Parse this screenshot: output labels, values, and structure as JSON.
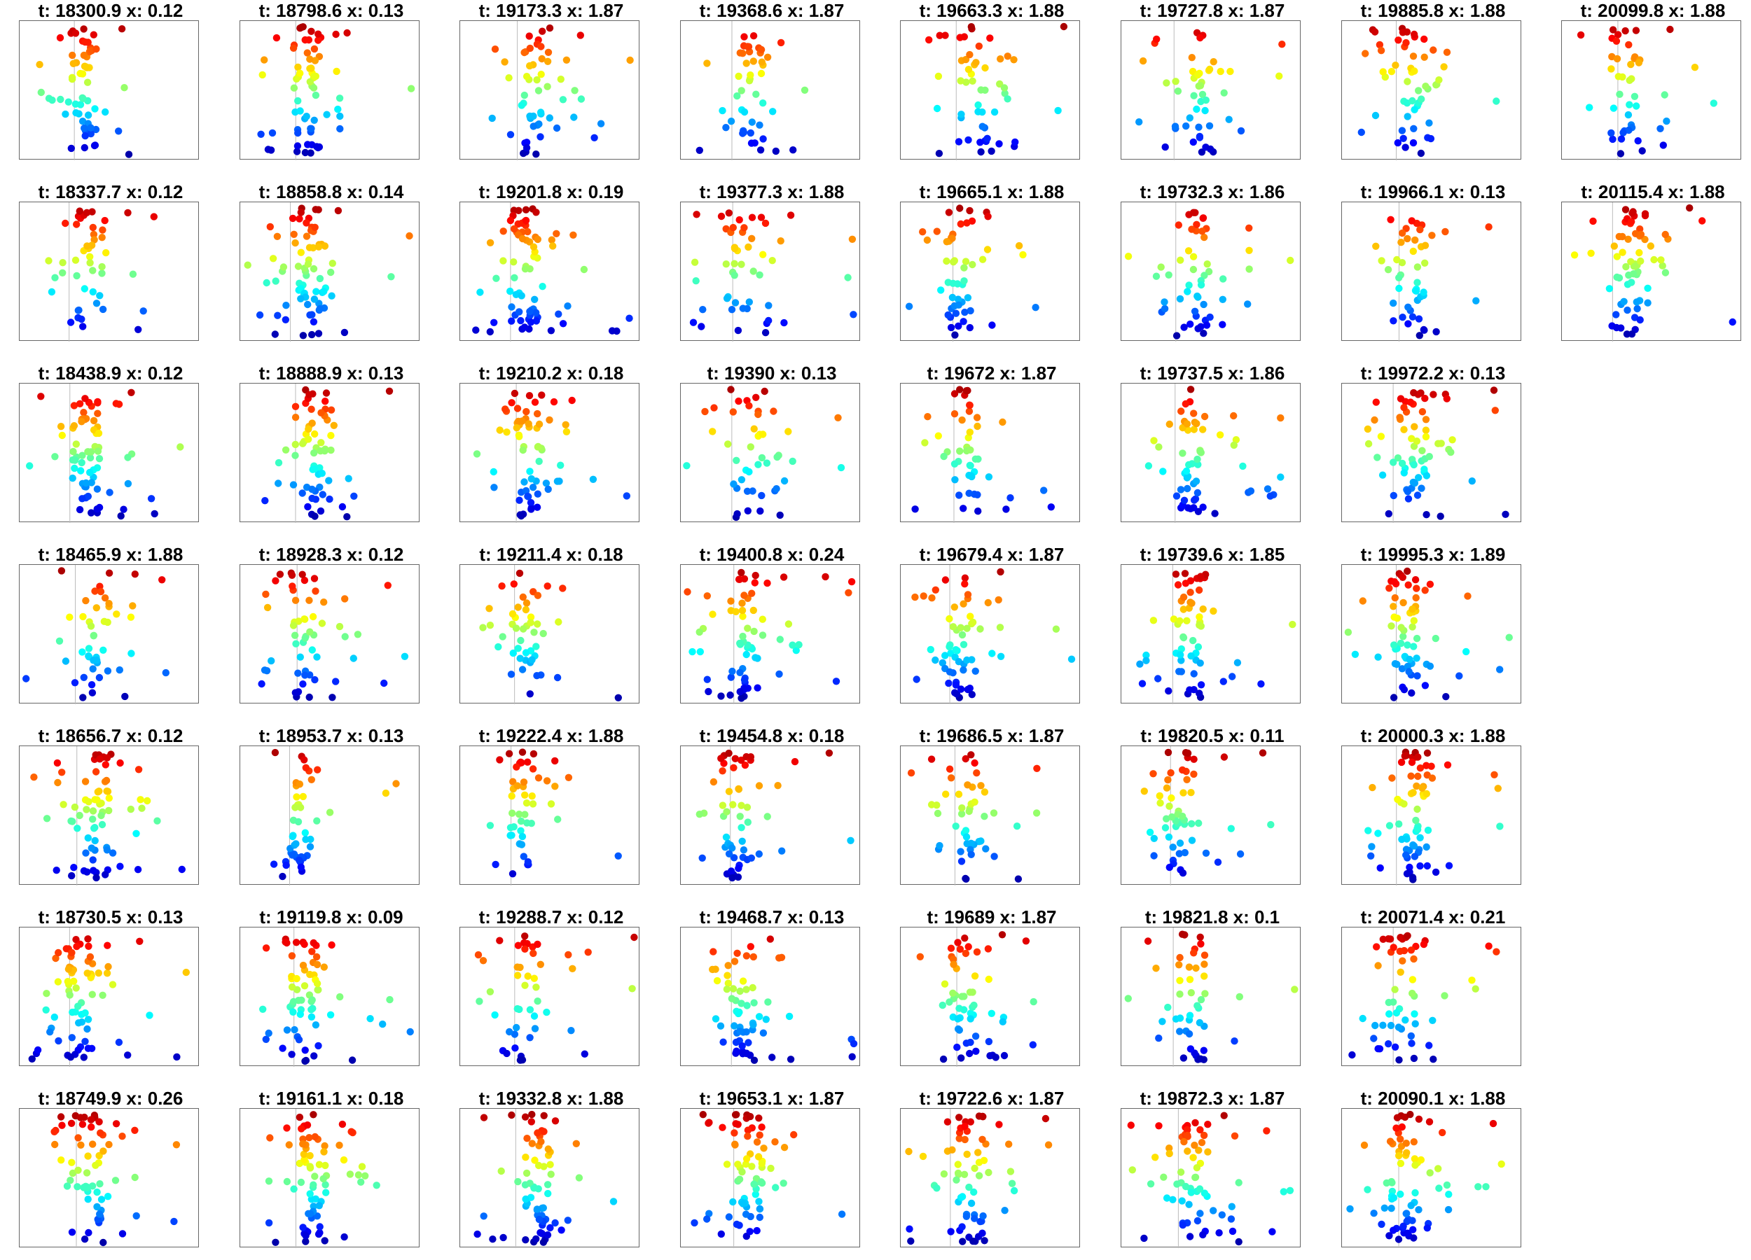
{
  "chart_data": {
    "type": "scatter",
    "layout": "7 rows x 8 columns, filled column by column",
    "colormap": "jet (blue at top, red at bottom)",
    "ticks": "none",
    "vertical_reference_line": true,
    "panels": [
      {
        "title": "t: 18300.9 x: 0.12"
      },
      {
        "title": "t: 18337.7 x: 0.12"
      },
      {
        "title": "t: 18438.9 x: 0.12"
      },
      {
        "title": "t: 18465.9 x: 1.88"
      },
      {
        "title": "t: 18656.7 x: 0.12"
      },
      {
        "title": "t: 18730.5 x: 0.13"
      },
      {
        "title": "t: 18749.9 x: 0.26"
      },
      {
        "title": "t: 18798.6 x: 0.13"
      },
      {
        "title": "t: 18858.8 x: 0.14"
      },
      {
        "title": "t: 18888.9 x: 0.13"
      },
      {
        "title": "t: 18928.3 x: 0.12"
      },
      {
        "title": "t: 18953.7 x: 0.13"
      },
      {
        "title": "t: 19119.8 x: 0.09"
      },
      {
        "title": "t: 19161.1 x: 0.18"
      },
      {
        "title": "t: 19173.3 x: 1.87"
      },
      {
        "title": "t: 19201.8 x: 0.19"
      },
      {
        "title": "t: 19210.2 x: 0.18"
      },
      {
        "title": "t: 19211.4 x: 0.18"
      },
      {
        "title": "t: 19222.4 x: 1.88"
      },
      {
        "title": "t: 19288.7 x: 0.12"
      },
      {
        "title": "t: 19332.8 x: 1.88"
      },
      {
        "title": "t: 19368.6 x: 1.87"
      },
      {
        "title": "t: 19377.3 x: 1.88"
      },
      {
        "title": "t: 19390 x: 0.13"
      },
      {
        "title": "t: 19400.8 x: 0.24"
      },
      {
        "title": "t: 19454.8 x: 0.18"
      },
      {
        "title": "t: 19468.7 x: 0.13"
      },
      {
        "title": "t: 19653.1 x: 1.87"
      },
      {
        "title": "t: 19663.3 x: 1.88"
      },
      {
        "title": "t: 19665.1 x: 1.88"
      },
      {
        "title": "t: 19672 x: 1.87"
      },
      {
        "title": "t: 19679.4 x: 1.87"
      },
      {
        "title": "t: 19686.5 x: 1.87"
      },
      {
        "title": "t: 19689 x: 1.87"
      },
      {
        "title": "t: 19722.6 x: 1.87"
      },
      {
        "title": "t: 19727.8 x: 1.87"
      },
      {
        "title": "t: 19732.3 x: 1.86"
      },
      {
        "title": "t: 19737.5 x: 1.86"
      },
      {
        "title": "t: 19739.6 x: 1.85"
      },
      {
        "title": "t: 19820.5 x: 0.11"
      },
      {
        "title": "t: 19821.8 x: 0.1"
      },
      {
        "title": "t: 19872.3 x: 1.87"
      },
      {
        "title": "t: 19885.8 x: 1.88"
      },
      {
        "title": "t: 19966.1 x: 0.13"
      },
      {
        "title": "t: 19972.2 x: 0.13"
      },
      {
        "title": "t: 19995.3 x: 1.89"
      },
      {
        "title": "t: 20000.3 x: 1.88"
      },
      {
        "title": "t: 20071.4 x: 0.21"
      },
      {
        "title": "t: 20090.1 x: 1.88"
      },
      {
        "title": "t: 20099.8 x: 1.88"
      },
      {
        "title": "t: 20115.4 x: 1.88"
      }
    ]
  }
}
